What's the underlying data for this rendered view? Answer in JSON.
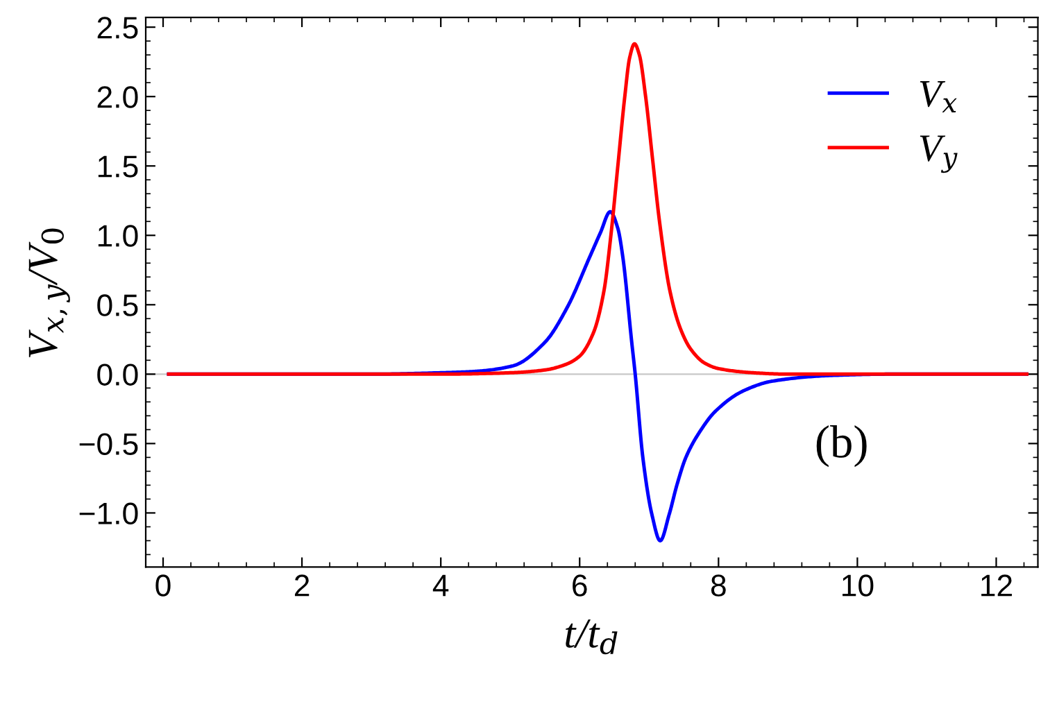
{
  "chart_data": {
    "type": "line",
    "xlabel": "t/t$_{d}$",
    "ylabel": "V$_{x,y}$/V$_{0}$",
    "xlim": [
      -0.25,
      12.6
    ],
    "ylim": [
      -1.39,
      2.57
    ],
    "xticks": [
      0,
      2,
      4,
      6,
      8,
      10,
      12
    ],
    "yticks": [
      {
        "value": -1.0,
        "label": "−1.0"
      },
      {
        "value": -0.5,
        "label": "−0.5"
      },
      {
        "value": 0,
        "label": "0.0"
      },
      {
        "value": 0.5,
        "label": "0.5"
      },
      {
        "value": 1.0,
        "label": "1.0"
      },
      {
        "value": 1.5,
        "label": "1.5"
      },
      {
        "value": 2.0,
        "label": "2.0"
      },
      {
        "value": 2.5,
        "label": "2.5"
      }
    ],
    "grid": false,
    "legend": "top right",
    "line_style": "solid",
    "marker": "none",
    "ref_lines": [
      {
        "axis": "y",
        "value": 0,
        "color": "#c8c8c8"
      }
    ],
    "annotations": [
      "(b)"
    ],
    "series": [
      {
        "name": "V$_{x}$",
        "color": "#0000ff",
        "x": [
          0.08,
          3.0,
          4.0,
          4.5,
          5.04,
          5.5,
          5.82,
          6.15,
          6.3,
          6.44,
          6.55,
          6.62,
          6.75,
          6.8,
          6.91,
          7.04,
          7.16,
          7.29,
          7.4,
          7.53,
          7.75,
          7.95,
          8.36,
          8.78,
          9.6,
          10.5,
          12.44
        ],
        "values": [
          0,
          0,
          0.01,
          0.02,
          0.06,
          0.23,
          0.48,
          0.85,
          1.02,
          1.17,
          1.05,
          0.85,
          0.23,
          0,
          -0.6,
          -1.01,
          -1.2,
          -1.01,
          -0.8,
          -0.6,
          -0.4,
          -0.27,
          -0.12,
          -0.05,
          -0.01,
          0,
          0
        ]
      },
      {
        "name": "V$_{y}$",
        "color": "#ff0000",
        "x": [
          0.08,
          4.0,
          5.0,
          5.5,
          5.8,
          6.0,
          6.2,
          6.35,
          6.45,
          6.55,
          6.65,
          6.72,
          6.79,
          6.86,
          6.95,
          7.05,
          7.15,
          7.3,
          7.45,
          7.6,
          7.8,
          8.0,
          8.5,
          9.0,
          12.44
        ],
        "values": [
          0,
          0,
          0.01,
          0.03,
          0.07,
          0.13,
          0.3,
          0.6,
          1.0,
          1.5,
          2.0,
          2.28,
          2.38,
          2.3,
          2.0,
          1.55,
          1.1,
          0.6,
          0.33,
          0.18,
          0.08,
          0.04,
          0.01,
          0,
          0
        ]
      }
    ]
  }
}
